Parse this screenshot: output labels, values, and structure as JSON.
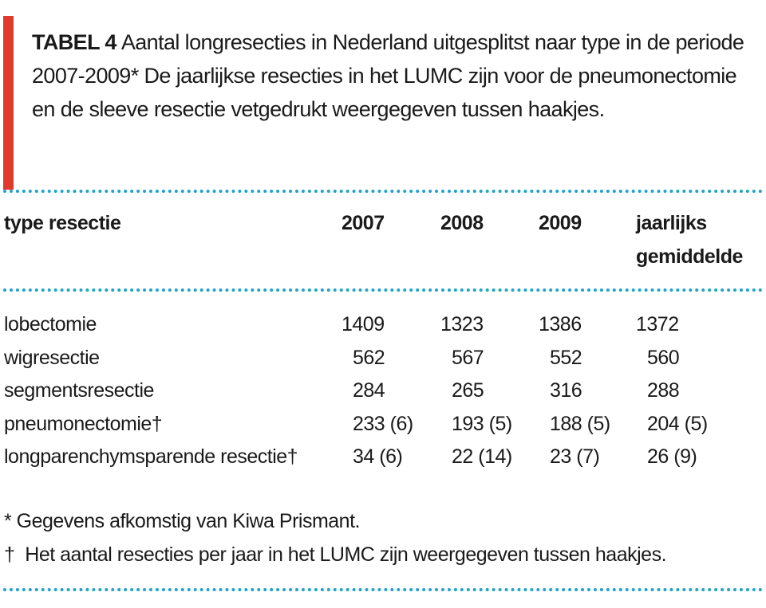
{
  "caption": {
    "label": "TABEL 4",
    "text": "Aantal longresecties in Nederland uitgesplitst naar type in de periode 2007-2009* De jaarlijkse resecties in het LUMC zijn voor de pneumonectomie en de sleeve resectie vetgedrukt weergegeven tussen haakjes."
  },
  "table": {
    "header": [
      "type resectie",
      "2007",
      "2008",
      "2009",
      "jaarlijks gemiddelde"
    ],
    "rows": [
      [
        "lobectomie",
        "1409",
        "1323",
        "1386",
        "1372"
      ],
      [
        "wigresectie",
        "562",
        "567",
        "552",
        "560"
      ],
      [
        "segmentsresectie",
        "284",
        "265",
        "316",
        "288"
      ],
      [
        "pneumonectomie†",
        "233 (6)",
        "193 (5)",
        "188 (5)",
        "204 (5)"
      ],
      [
        "longparenchymsparende resectie†",
        "34 (6)",
        "22 (14)",
        "23 (7)",
        "26 (9)"
      ]
    ]
  },
  "footnotes": [
    "* Gegevens afkomstig van Kiwa Prismant.",
    "†  Het aantal resecties per jaar in het LUMC zijn weergegeven tussen haakjes."
  ]
}
